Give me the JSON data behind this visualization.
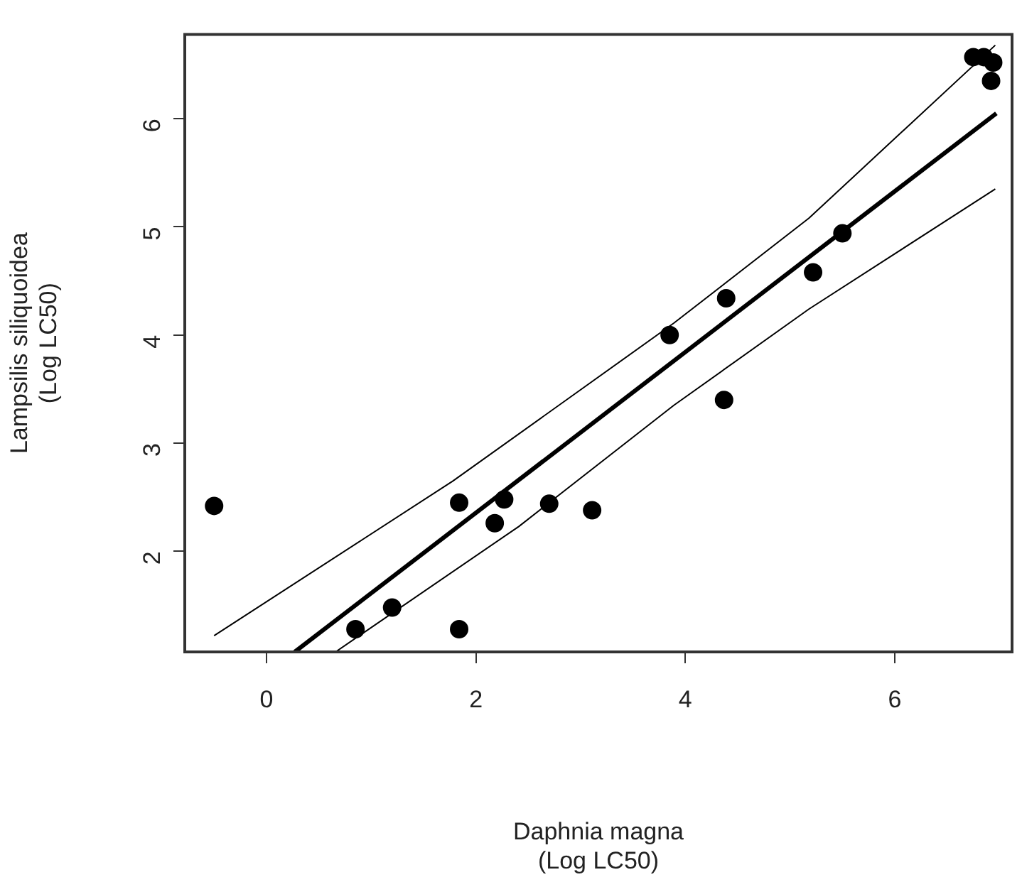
{
  "chart_data": {
    "type": "scatter",
    "xlabel": "Daphnia magna\n(Log LC50)",
    "ylabel": "Lampsilis siliquoidea\n(Log LC50)",
    "xlim": [
      -0.78,
      7.12
    ],
    "ylim": [
      1.07,
      6.78
    ],
    "xticks": [
      0,
      2,
      4,
      6
    ],
    "yticks": [
      2,
      3,
      4,
      5,
      6
    ],
    "grid": false,
    "legend": false,
    "line_style": "solid",
    "series": [
      {
        "marker": "circle",
        "color": "#000000",
        "x": [
          -0.5,
          0.85,
          1.2,
          1.84,
          1.84,
          2.18,
          2.27,
          2.7,
          3.11,
          3.85,
          4.37,
          4.39,
          5.22,
          5.5,
          6.75,
          6.85,
          6.94,
          6.92
        ],
        "values": [
          2.42,
          1.28,
          1.48,
          2.45,
          1.28,
          2.26,
          2.48,
          2.44,
          2.38,
          4.0,
          3.4,
          4.34,
          4.58,
          4.94,
          6.57,
          6.57,
          6.52,
          6.35
        ]
      },
      {
        "type": "line",
        "marker": "none",
        "color": "#000000",
        "x": [
          0.27,
          6.97
        ],
        "values": [
          1.07,
          6.05
        ]
      },
      {
        "type": "line",
        "marker": "none",
        "color": "#000000",
        "x": [
          -0.5,
          1.78,
          3.89,
          5.18,
          6.96
        ],
        "values": [
          1.22,
          2.65,
          4.11,
          5.08,
          6.68
        ]
      },
      {
        "type": "line",
        "marker": "none",
        "color": "#000000",
        "x": [
          0.66,
          2.41,
          3.89,
          5.18,
          6.96
        ],
        "values": [
          1.07,
          2.23,
          3.35,
          4.24,
          5.35
        ]
      }
    ]
  }
}
